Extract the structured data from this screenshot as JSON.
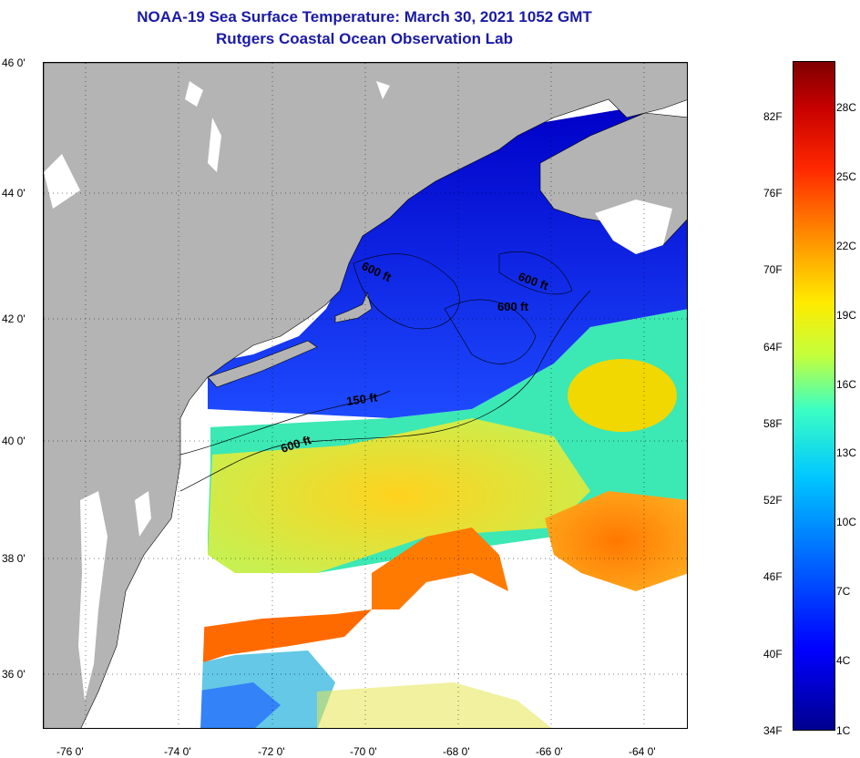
{
  "title": {
    "line1": "NOAA-19 Sea Surface Temperature:  March 30, 2021 1052 GMT",
    "line2": "Rutgers Coastal Ocean Observation Lab"
  },
  "map": {
    "lat_labels": [
      "46 0'",
      "44 0'",
      "42 0'",
      "40 0'",
      "38 0'",
      "36 0'"
    ],
    "lon_labels": [
      "-76 0'",
      "-74 0'",
      "-72 0'",
      "-70 0'",
      "-68 0'",
      "-66 0'",
      "-64 0'"
    ],
    "contour_labels": [
      "600 ft",
      "600 ft",
      "600 ft",
      "150 ft",
      "600 ft"
    ],
    "land_color": "#b4b4b4",
    "cloud_color": "#ffffff"
  },
  "colorbar": {
    "fahrenheit": [
      "82F",
      "76F",
      "70F",
      "64F",
      "58F",
      "52F",
      "46F",
      "40F",
      "34F"
    ],
    "celsius": [
      "28C",
      "25C",
      "22C",
      "19C",
      "16C",
      "13C",
      "10C",
      "7C",
      "4C",
      "1C"
    ]
  }
}
